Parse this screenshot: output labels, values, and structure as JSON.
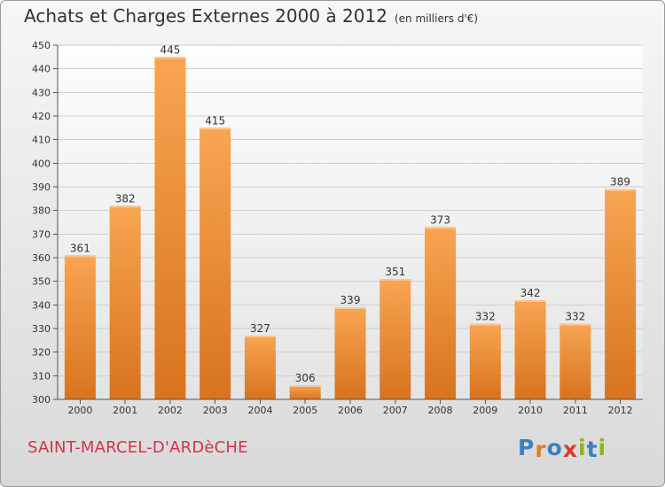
{
  "title": "Achats et Charges Externes 2000 à 2012",
  "subtitle": "(en milliers d'€)",
  "location": "SAINT-MARCEL-D'ARDèCHE",
  "logo": {
    "letters": [
      "P",
      "r",
      "o",
      "x",
      "i",
      "t",
      "i"
    ],
    "colors": [
      "#3a7fc6",
      "#e67e22",
      "#3a7fc6",
      "#d83a2e",
      "#8ab61c",
      "#3a7fc6",
      "#8ab61c"
    ]
  },
  "colors": {
    "bar_top": "#f8a552",
    "bar_bottom": "#d8731e",
    "location": "#d2334f"
  },
  "chart_data": {
    "type": "bar",
    "categories": [
      "2000",
      "2001",
      "2002",
      "2003",
      "2004",
      "2005",
      "2006",
      "2007",
      "2008",
      "2009",
      "2010",
      "2011",
      "2012"
    ],
    "values": [
      361,
      382,
      445,
      415,
      327,
      306,
      339,
      351,
      373,
      332,
      342,
      332,
      389
    ],
    "ylim": [
      300,
      450
    ],
    "yticks": [
      300,
      310,
      320,
      330,
      340,
      350,
      360,
      370,
      380,
      390,
      400,
      410,
      420,
      430,
      440,
      450
    ],
    "grid": true
  }
}
